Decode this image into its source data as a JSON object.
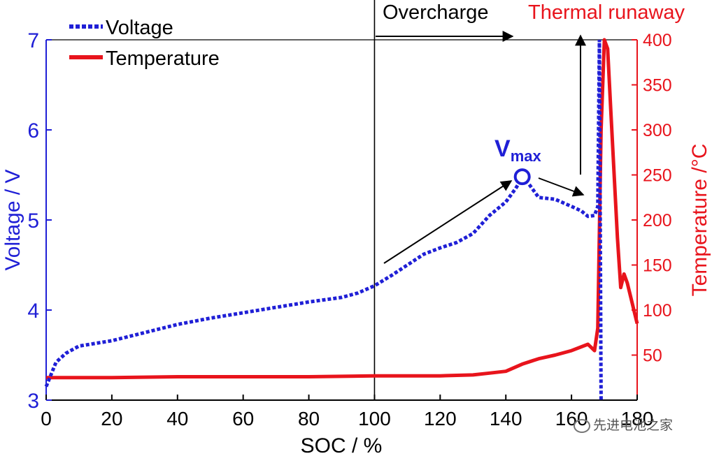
{
  "chart_data": {
    "type": "line",
    "xlabel": "SOC / %",
    "xlim": [
      0,
      180
    ],
    "xticks": [
      0,
      20,
      40,
      60,
      80,
      100,
      120,
      140,
      160,
      180
    ],
    "y_left": {
      "label": "Voltage / V",
      "lim": [
        3,
        7
      ],
      "ticks": [
        3,
        4,
        5,
        6,
        7
      ],
      "color": "#1f1fd6"
    },
    "y_right": {
      "label": "Temperature /°C",
      "lim": [
        0,
        400
      ],
      "ticks": [
        50,
        100,
        150,
        200,
        250,
        300,
        350,
        400
      ],
      "color": "#e8141c"
    },
    "legend": {
      "position": "top-left",
      "entries": [
        {
          "label": "Voltage",
          "style": "dotted",
          "color": "#1f1fd6"
        },
        {
          "label": "Temperature",
          "style": "solid",
          "color": "#e8141c"
        }
      ]
    },
    "series": [
      {
        "name": "Voltage",
        "axis": "left",
        "x": [
          0,
          3,
          6,
          10,
          20,
          30,
          40,
          50,
          60,
          70,
          80,
          90,
          95,
          100,
          105,
          110,
          115,
          120,
          125,
          130,
          135,
          140,
          143,
          145,
          147,
          150,
          155,
          160,
          163,
          165,
          167,
          168,
          168.5,
          169
        ],
        "y": [
          3.15,
          3.42,
          3.52,
          3.6,
          3.66,
          3.75,
          3.84,
          3.91,
          3.97,
          4.03,
          4.09,
          4.14,
          4.19,
          4.27,
          4.38,
          4.5,
          4.62,
          4.69,
          4.75,
          4.85,
          5.05,
          5.2,
          5.35,
          5.47,
          5.4,
          5.25,
          5.23,
          5.15,
          5.1,
          5.04,
          5.05,
          5.15,
          7.0,
          3.0
        ]
      },
      {
        "name": "Temperature",
        "axis": "right",
        "x": [
          0,
          20,
          40,
          60,
          80,
          100,
          120,
          130,
          135,
          140,
          145,
          150,
          155,
          160,
          165,
          167,
          168,
          169,
          170,
          170.5,
          171,
          172,
          173,
          174,
          175,
          176,
          177,
          178,
          179,
          180
        ],
        "y": [
          25,
          25,
          26,
          26,
          26,
          27,
          27,
          28,
          30,
          32,
          40,
          46,
          50,
          55,
          62,
          55,
          80,
          300,
          400,
          395,
          390,
          320,
          250,
          180,
          125,
          140,
          130,
          115,
          100,
          85
        ]
      }
    ],
    "annotations": {
      "overcharge": "Overcharge",
      "thermal_runaway": "Thermal runaway",
      "vmax_main": "V",
      "vmax_sub": "max",
      "vmax_point": {
        "x": 145,
        "y": 5.48
      }
    },
    "vline_x": 100
  },
  "watermark": "先进电池之家"
}
